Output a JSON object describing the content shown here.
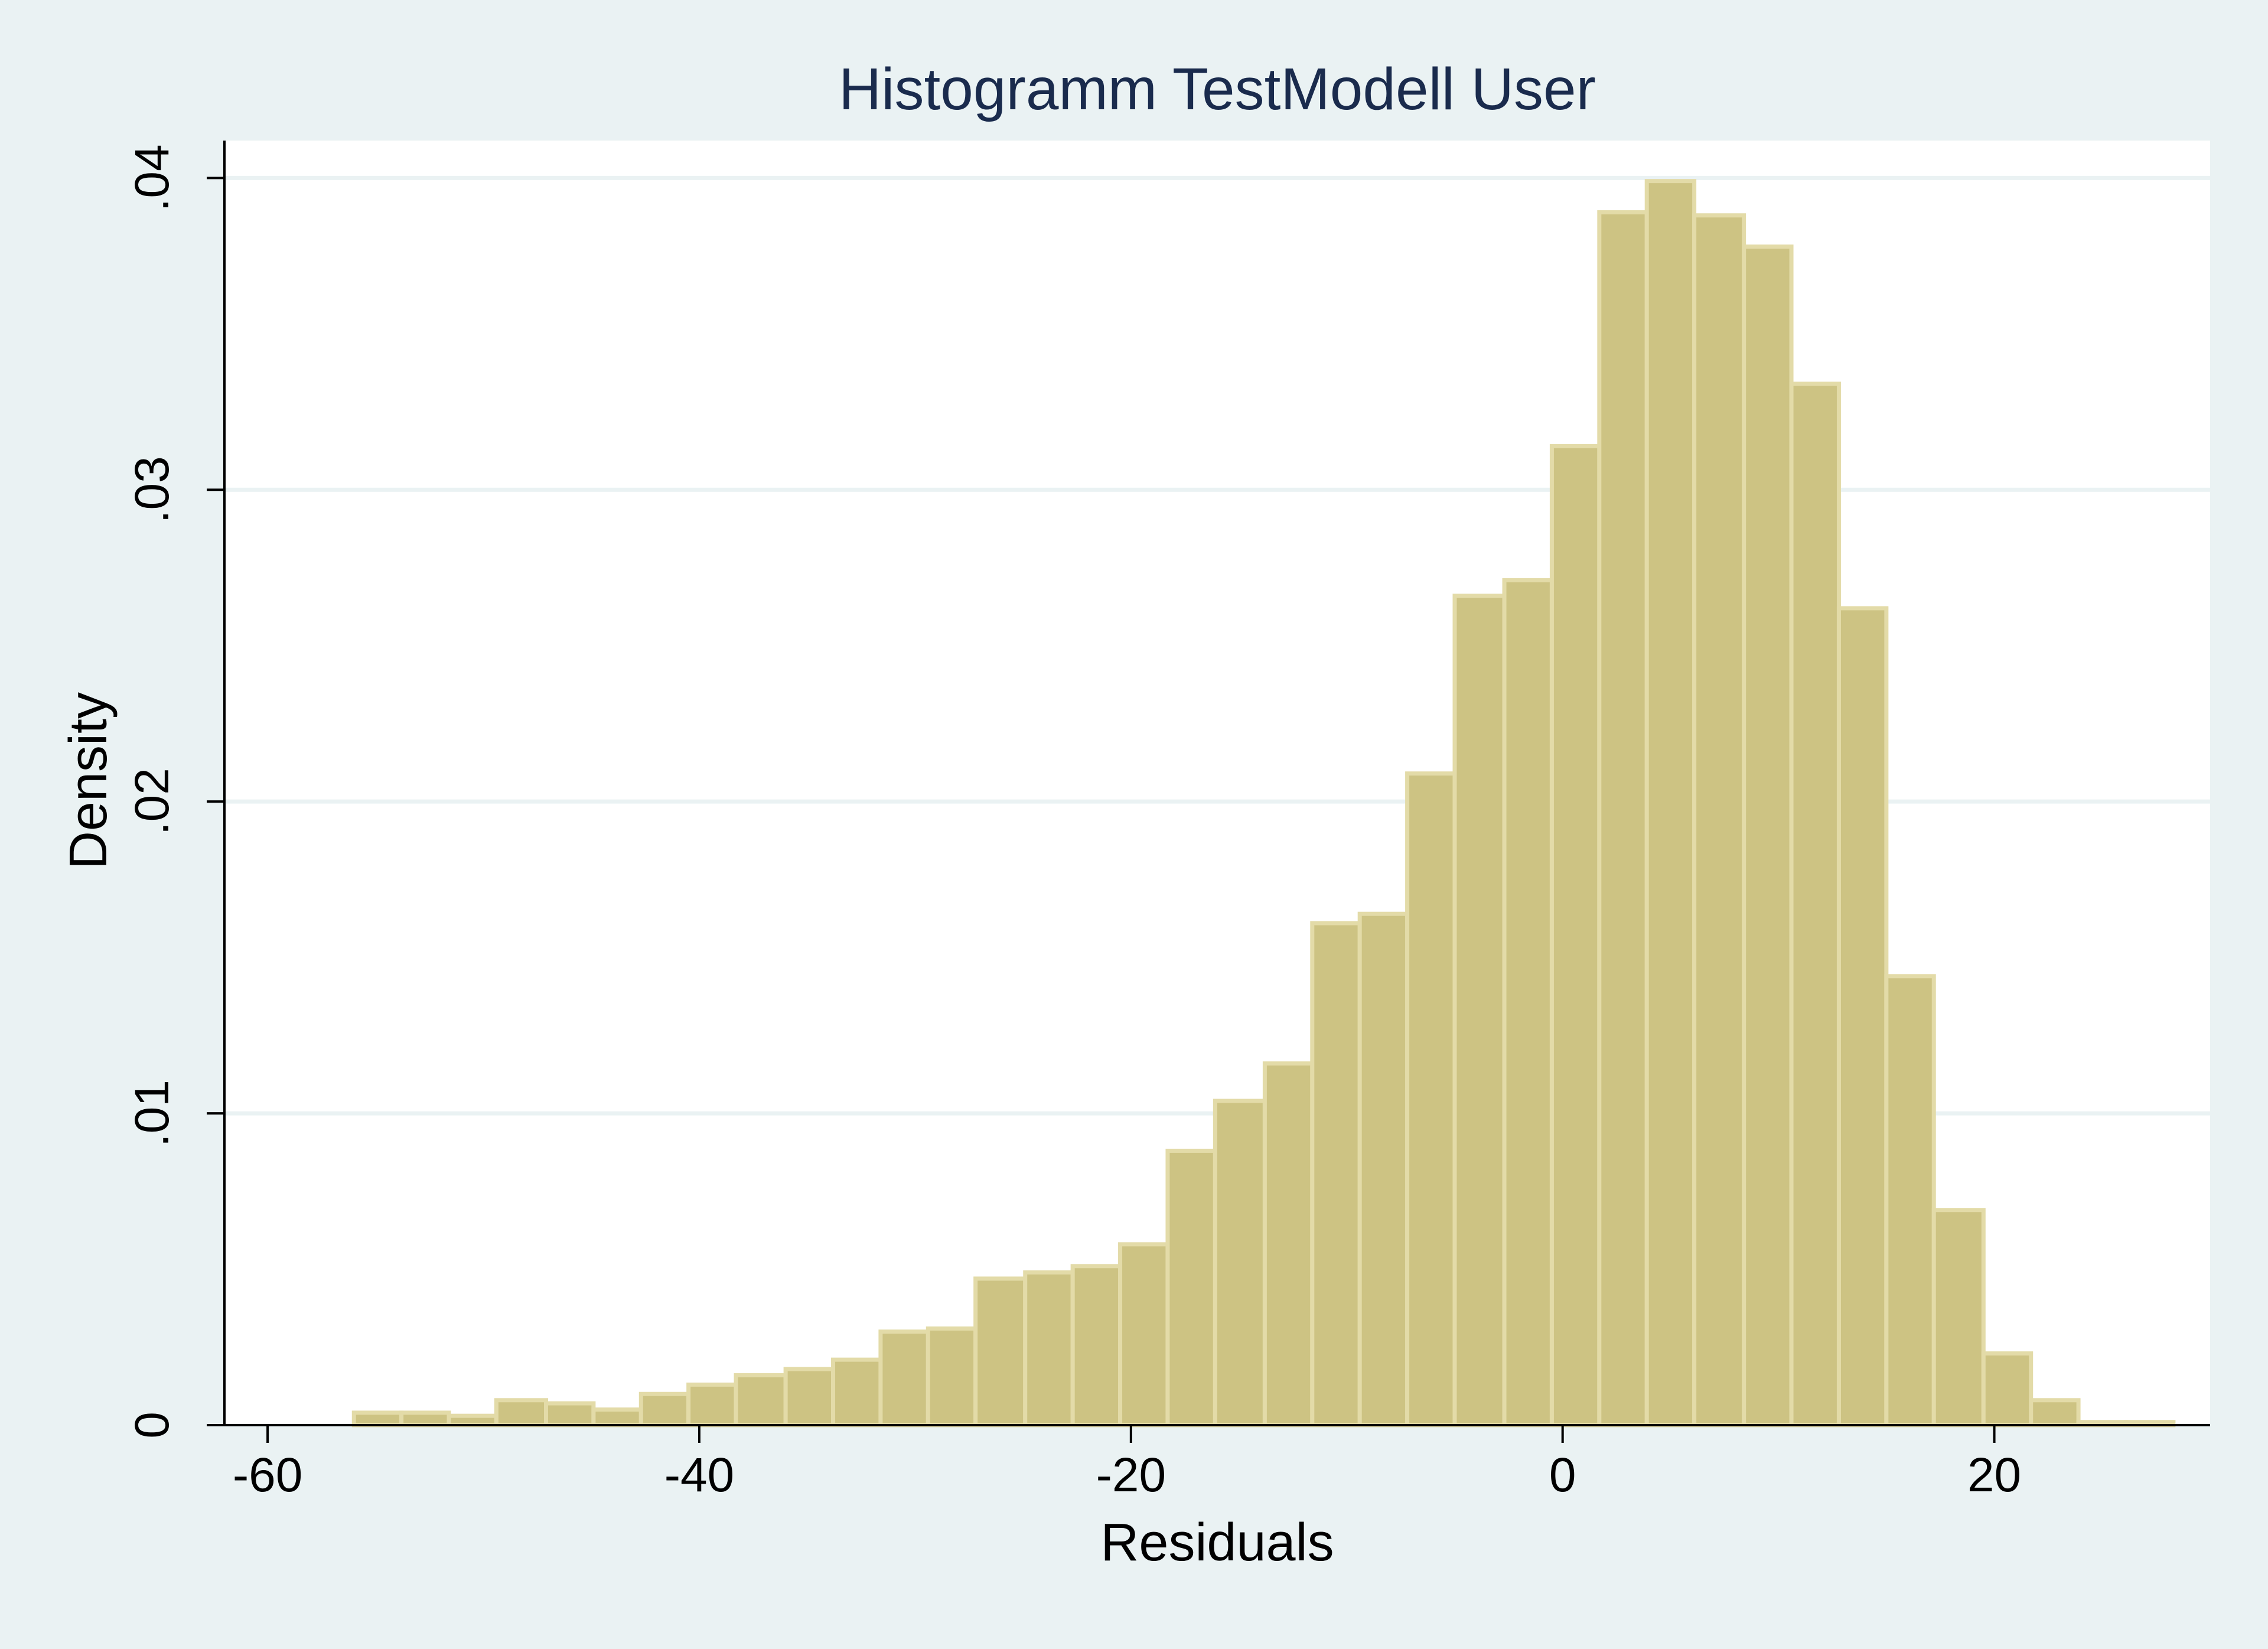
{
  "chart_data": {
    "type": "bar",
    "title": "Histogramm TestModell User",
    "xlabel": "Residuals",
    "ylabel": "Density",
    "xlim": [
      -62,
      30
    ],
    "ylim": [
      0,
      0.0412
    ],
    "x_ticks": [
      -60,
      -40,
      -20,
      0,
      20
    ],
    "x_tick_labels": [
      "-60",
      "-40",
      "-20",
      "0",
      "20"
    ],
    "y_ticks": [
      0,
      0.01,
      0.02,
      0.03,
      0.04
    ],
    "y_tick_labels": [
      "0",
      ".01",
      ".02",
      ".03",
      ".04"
    ],
    "grid": true,
    "bar_color": "#cdc383",
    "bar_edge_color": "#e3dba8",
    "bins": [
      {
        "start": -56.0,
        "end": -53.8,
        "density": 0.0004
      },
      {
        "start": -53.8,
        "end": -51.6,
        "density": 0.0004
      },
      {
        "start": -51.6,
        "end": -49.4,
        "density": 0.0003
      },
      {
        "start": -49.4,
        "end": -47.1,
        "density": 0.0008
      },
      {
        "start": -47.1,
        "end": -44.9,
        "density": 0.0007
      },
      {
        "start": -44.9,
        "end": -42.7,
        "density": 0.0005
      },
      {
        "start": -42.7,
        "end": -40.5,
        "density": 0.001
      },
      {
        "start": -40.5,
        "end": -38.3,
        "density": 0.0013
      },
      {
        "start": -38.3,
        "end": -36.0,
        "density": 0.0016
      },
      {
        "start": -36.0,
        "end": -33.8,
        "density": 0.0018
      },
      {
        "start": -33.8,
        "end": -31.6,
        "density": 0.0021
      },
      {
        "start": -31.6,
        "end": -29.4,
        "density": 0.003
      },
      {
        "start": -29.4,
        "end": -27.2,
        "density": 0.0031
      },
      {
        "start": -27.2,
        "end": -24.9,
        "density": 0.0047
      },
      {
        "start": -24.9,
        "end": -22.7,
        "density": 0.0049
      },
      {
        "start": -22.7,
        "end": -20.5,
        "density": 0.0051
      },
      {
        "start": -20.5,
        "end": -18.3,
        "density": 0.0058
      },
      {
        "start": -18.3,
        "end": -16.1,
        "density": 0.0088
      },
      {
        "start": -16.1,
        "end": -13.8,
        "density": 0.0104
      },
      {
        "start": -13.8,
        "end": -11.6,
        "density": 0.0116
      },
      {
        "start": -11.6,
        "end": -9.4,
        "density": 0.0161
      },
      {
        "start": -9.4,
        "end": -7.2,
        "density": 0.0164
      },
      {
        "start": -7.2,
        "end": -5.0,
        "density": 0.0209
      },
      {
        "start": -5.0,
        "end": -2.7,
        "density": 0.0266
      },
      {
        "start": -2.7,
        "end": -0.5,
        "density": 0.0271
      },
      {
        "start": -0.5,
        "end": 1.7,
        "density": 0.0314
      },
      {
        "start": 1.7,
        "end": 3.9,
        "density": 0.0389
      },
      {
        "start": 3.9,
        "end": 6.1,
        "density": 0.0399
      },
      {
        "start": 6.1,
        "end": 8.4,
        "density": 0.0388
      },
      {
        "start": 8.4,
        "end": 10.6,
        "density": 0.0378
      },
      {
        "start": 10.6,
        "end": 12.8,
        "density": 0.0334
      },
      {
        "start": 12.8,
        "end": 15.0,
        "density": 0.0262
      },
      {
        "start": 15.0,
        "end": 17.2,
        "density": 0.0144
      },
      {
        "start": 17.2,
        "end": 19.5,
        "density": 0.0069
      },
      {
        "start": 19.5,
        "end": 21.7,
        "density": 0.0023
      },
      {
        "start": 21.7,
        "end": 23.9,
        "density": 0.0008
      },
      {
        "start": 23.9,
        "end": 26.1,
        "density": 0.0001
      },
      {
        "start": 26.1,
        "end": 28.3,
        "density": 0.0001
      }
    ]
  }
}
